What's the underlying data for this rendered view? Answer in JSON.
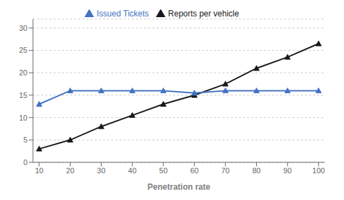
{
  "chart_data": {
    "type": "line",
    "xlabel": "Penetration rate",
    "x": [
      10,
      20,
      30,
      40,
      50,
      60,
      70,
      80,
      90,
      100
    ],
    "series": [
      {
        "name": "Reports per vehicle",
        "color": "#1a1a1a",
        "marker": "triangle",
        "values": [
          3,
          5,
          8,
          10.5,
          13,
          15,
          17.5,
          21,
          23.5,
          26.5
        ]
      },
      {
        "name": "Issued Tickets",
        "color": "#4472c4",
        "marker": "triangle",
        "values": [
          13,
          16,
          16,
          16,
          16,
          15.5,
          16,
          16,
          16,
          16
        ]
      }
    ],
    "xlim": [
      8,
      102
    ],
    "ylim": [
      0,
      32
    ],
    "xticks": [
      10,
      20,
      30,
      40,
      50,
      60,
      70,
      80,
      90,
      100
    ],
    "yticks": [
      0,
      5,
      10,
      15,
      20,
      25,
      30
    ],
    "grid": true,
    "legend": "top"
  }
}
